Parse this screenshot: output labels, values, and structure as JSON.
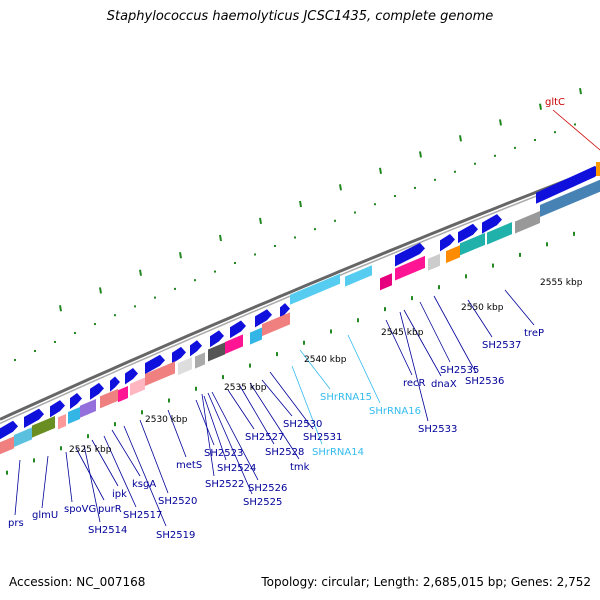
{
  "title": "Staphylococcus haemolyticus JCSC1435, complete genome",
  "footer": {
    "accession": "Accession: NC_007168",
    "summary": "Topology: circular; Length: 2,685,015 bp; Genes: 2,752"
  },
  "scale_labels": [
    {
      "text": "2525 kbp"
    },
    {
      "text": "2530 kbp"
    },
    {
      "text": "2535 kbp"
    },
    {
      "text": "2540 kbp"
    },
    {
      "text": "2545 kbp"
    },
    {
      "text": "2550 kbp"
    },
    {
      "text": "2555 kbp"
    }
  ],
  "gene_labels": [
    {
      "text": "gltC",
      "color": "#cc0000"
    },
    {
      "text": "prs",
      "color": "#000099"
    },
    {
      "text": "glmU",
      "color": "#000099"
    },
    {
      "text": "spoVG",
      "color": "#000099"
    },
    {
      "text": "purR",
      "color": "#000099"
    },
    {
      "text": "SH2514",
      "color": "#000099"
    },
    {
      "text": "ipk",
      "color": "#000099"
    },
    {
      "text": "SH2517",
      "color": "#000099"
    },
    {
      "text": "ksgA",
      "color": "#000099"
    },
    {
      "text": "SH2519",
      "color": "#000099"
    },
    {
      "text": "SH2520",
      "color": "#000099"
    },
    {
      "text": "metS",
      "color": "#000099"
    },
    {
      "text": "SH2523",
      "color": "#000099"
    },
    {
      "text": "SH2524",
      "color": "#000099"
    },
    {
      "text": "SH2522",
      "color": "#000099"
    },
    {
      "text": "SH2527",
      "color": "#000099"
    },
    {
      "text": "SH2526",
      "color": "#000099"
    },
    {
      "text": "SH2525",
      "color": "#000099"
    },
    {
      "text": "SH2528",
      "color": "#000099"
    },
    {
      "text": "SH2530",
      "color": "#000099"
    },
    {
      "text": "tmk",
      "color": "#000099"
    },
    {
      "text": "SH2531",
      "color": "#000099"
    },
    {
      "text": "SHrRNA14",
      "color": "#33bbee"
    },
    {
      "text": "SHrRNA15",
      "color": "#33bbee"
    },
    {
      "text": "SHrRNA16",
      "color": "#33bbee"
    },
    {
      "text": "recR",
      "color": "#000099"
    },
    {
      "text": "dnaX",
      "color": "#000099"
    },
    {
      "text": "SH2533",
      "color": "#000099"
    },
    {
      "text": "SH2535",
      "color": "#000099"
    },
    {
      "text": "SH2536",
      "color": "#000099"
    },
    {
      "text": "SH2537",
      "color": "#000099"
    },
    {
      "text": "treP",
      "color": "#000099"
    }
  ],
  "colors": {
    "backbone": "#888888",
    "gene_arrow": "#1010dd",
    "rna_arrow": "#55ccf0",
    "dots": "#228822",
    "ticks": "#228822"
  }
}
